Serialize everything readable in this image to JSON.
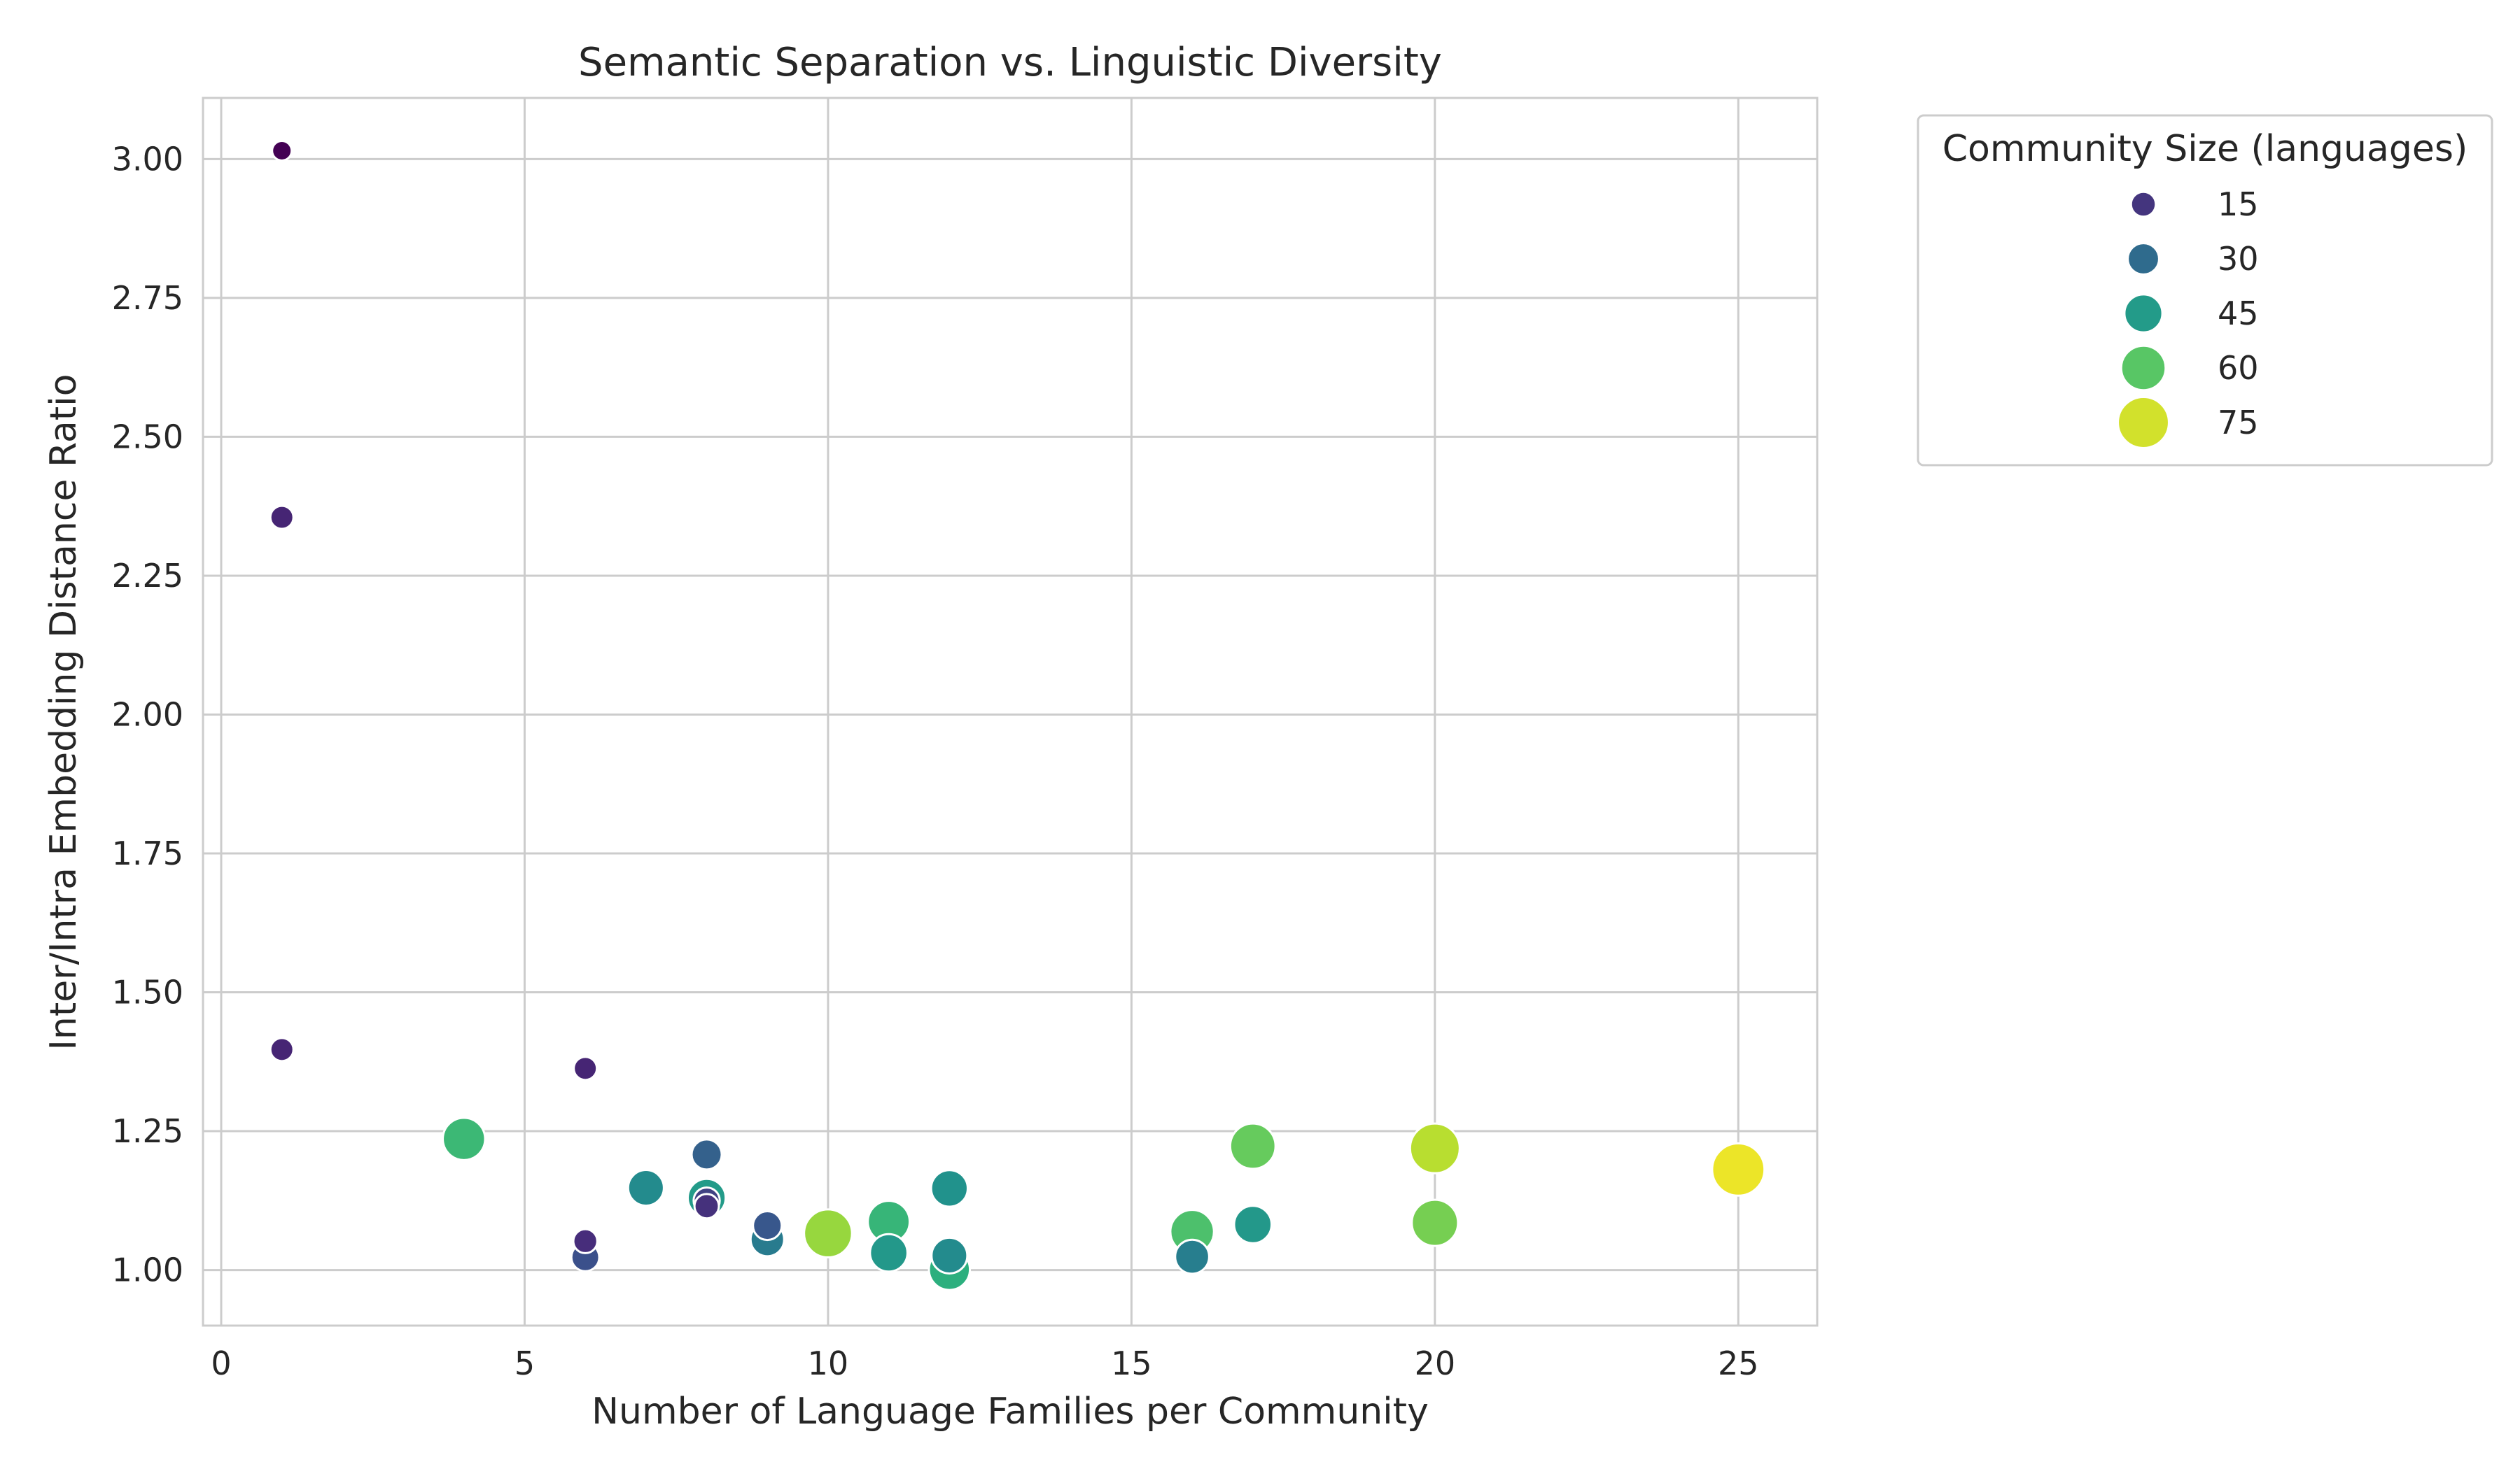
{
  "chart_data": {
    "type": "scatter",
    "title": "Semantic Separation vs. Linguistic Diversity",
    "xlabel": "Number of Language Families per Community",
    "ylabel": "Inter/Intra Embedding Distance Ratio",
    "xlim": [
      -0.3,
      26.3
    ],
    "ylim": [
      0.9,
      3.11
    ],
    "xticks": [
      0,
      5,
      10,
      15,
      20,
      25
    ],
    "yticks": [
      1.0,
      1.25,
      1.5,
      1.75,
      2.0,
      2.25,
      2.5,
      2.75,
      3.0
    ],
    "grid": true,
    "size_range": [
      3,
      80
    ],
    "legend": {
      "title": "Community Size (languages)",
      "placement": "outside-right-top",
      "entries": [
        {
          "label": "15",
          "size": 15
        },
        {
          "label": "30",
          "size": 30
        },
        {
          "label": "45",
          "size": 45
        },
        {
          "label": "60",
          "size": 60
        },
        {
          "label": "75",
          "size": 75
        }
      ]
    },
    "points": [
      {
        "x": 1,
        "y": 3.015,
        "size": 3
      },
      {
        "x": 1,
        "y": 2.355,
        "size": 11
      },
      {
        "x": 1,
        "y": 1.397,
        "size": 11
      },
      {
        "x": 6,
        "y": 1.363,
        "size": 11
      },
      {
        "x": 4,
        "y": 1.236,
        "size": 55
      },
      {
        "x": 6,
        "y": 1.052,
        "size": 13
      },
      {
        "x": 6,
        "y": 1.023,
        "size": 22
      },
      {
        "x": 7,
        "y": 1.148,
        "size": 40
      },
      {
        "x": 8,
        "y": 1.13,
        "size": 45
      },
      {
        "x": 8,
        "y": 1.208,
        "size": 27
      },
      {
        "x": 8,
        "y": 1.115,
        "size": 14
      },
      {
        "x": 8,
        "y": 1.125,
        "size": 18
      },
      {
        "x": 9,
        "y": 1.055,
        "size": 35
      },
      {
        "x": 9,
        "y": 1.08,
        "size": 24
      },
      {
        "x": 10,
        "y": 1.066,
        "size": 68
      },
      {
        "x": 11,
        "y": 1.087,
        "size": 54
      },
      {
        "x": 11,
        "y": 1.031,
        "size": 44
      },
      {
        "x": 12,
        "y": 1.147,
        "size": 42
      },
      {
        "x": 12,
        "y": 1.001,
        "size": 52
      },
      {
        "x": 12,
        "y": 1.026,
        "size": 40
      },
      {
        "x": 16,
        "y": 1.069,
        "size": 58
      },
      {
        "x": 16,
        "y": 1.024,
        "size": 36
      },
      {
        "x": 17,
        "y": 1.223,
        "size": 62
      },
      {
        "x": 17,
        "y": 1.082,
        "size": 44
      },
      {
        "x": 20,
        "y": 1.219,
        "size": 72
      },
      {
        "x": 20,
        "y": 1.085,
        "size": 64
      },
      {
        "x": 25,
        "y": 1.181,
        "size": 78
      }
    ]
  }
}
